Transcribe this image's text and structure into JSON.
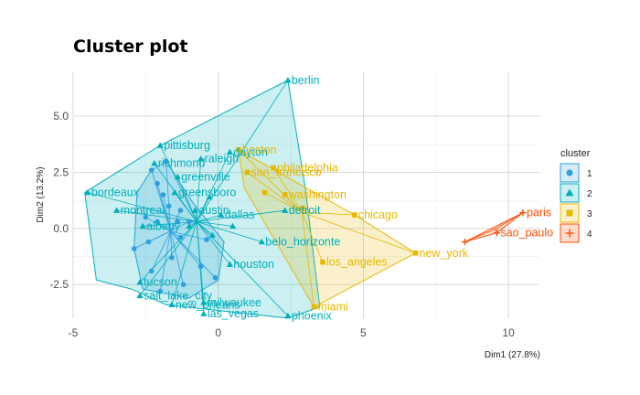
{
  "chart_data": {
    "type": "scatter",
    "title": "Cluster plot",
    "xlabel": "Dim1 (27.8%)",
    "ylabel": "Dim2 (13.2%)",
    "xlim": [
      -5,
      11.1
    ],
    "ylim": [
      -4.0,
      7.0
    ],
    "xticks": [
      -5,
      0,
      5,
      10
    ],
    "yticks": [
      -2.5,
      0.0,
      2.5,
      5.0
    ],
    "xtick_labels": [
      "-5",
      "0",
      "5",
      "10"
    ],
    "ytick_labels": [
      "-2.5",
      "0.0",
      "2.5",
      "5.0"
    ],
    "grid": true,
    "legend": {
      "title": "cluster",
      "position": "right",
      "entries": [
        {
          "label": "1",
          "color": "#2E9FDF",
          "shape": "circle"
        },
        {
          "label": "2",
          "color": "#00AFBB",
          "shape": "triangle"
        },
        {
          "label": "3",
          "color": "#E7B800",
          "shape": "square"
        },
        {
          "label": "4",
          "color": "#FC4E07",
          "shape": "cross"
        }
      ]
    },
    "series": [
      {
        "name": "1",
        "color": "#2E9FDF",
        "shape": "circle",
        "hull": [
          [
            -2.3,
            2.6
          ],
          [
            -1.8,
            3.0
          ],
          [
            -0.9,
            1.2
          ],
          [
            0.2,
            -0.6
          ],
          [
            0.0,
            -2.3
          ],
          [
            -1.0,
            -3.1
          ],
          [
            -2.6,
            -2.7
          ],
          [
            -2.9,
            -0.9
          ],
          [
            -2.8,
            1.6
          ]
        ],
        "points": [
          {
            "x": -1.9,
            "y": 1.5
          },
          {
            "x": -1.7,
            "y": 1.0
          },
          {
            "x": -1.3,
            "y": 0.8
          },
          {
            "x": -1.0,
            "y": 0.3
          },
          {
            "x": -1.4,
            "y": 0.3
          },
          {
            "x": -2.1,
            "y": 0.3
          },
          {
            "x": -2.5,
            "y": 0.5
          },
          {
            "x": -2.4,
            "y": -0.6
          },
          {
            "x": -1.3,
            "y": -0.4
          },
          {
            "x": -0.4,
            "y": -0.5
          },
          {
            "x": -1.6,
            "y": -1.3
          },
          {
            "x": -2.3,
            "y": -1.9
          },
          {
            "x": -0.6,
            "y": -1.7
          },
          {
            "x": -1.2,
            "y": -2.5
          },
          {
            "x": -2.0,
            "y": -2.8
          },
          {
            "x": -0.1,
            "y": -2.2
          },
          {
            "x": -2.1,
            "y": 2.0
          },
          {
            "x": -2.3,
            "y": 2.6
          },
          {
            "x": -1.8,
            "y": 3.0
          },
          {
            "x": -2.9,
            "y": -0.9
          }
        ]
      },
      {
        "name": "2",
        "color": "#00AFBB",
        "shape": "triangle",
        "hull": [
          [
            2.4,
            6.6
          ],
          [
            3.0,
            1.8
          ],
          [
            3.5,
            -3.5
          ],
          [
            2.4,
            -4.0
          ],
          [
            -1.8,
            -3.4
          ],
          [
            -3.0,
            -2.7
          ],
          [
            -4.2,
            -2.3
          ],
          [
            -4.6,
            1.6
          ],
          [
            -2.0,
            3.7
          ]
        ],
        "points": [
          {
            "x": 2.4,
            "y": 6.6,
            "label": "berlin"
          },
          {
            "x": -2.0,
            "y": 3.7,
            "label": "pittisburg"
          },
          {
            "x": -2.2,
            "y": 2.9,
            "label": "richmond"
          },
          {
            "x": -0.6,
            "y": 3.1,
            "label": "raleigh"
          },
          {
            "x": 0.4,
            "y": 3.4,
            "label": "dayton"
          },
          {
            "x": -4.5,
            "y": 1.6,
            "label": "bordeaux"
          },
          {
            "x": -1.4,
            "y": 2.3,
            "label": "greenville"
          },
          {
            "x": -1.5,
            "y": 1.6,
            "label": "greensboro"
          },
          {
            "x": -3.5,
            "y": 0.8,
            "label": "montreal"
          },
          {
            "x": -0.8,
            "y": 0.8,
            "label": "austin"
          },
          {
            "x": 0.1,
            "y": 0.6,
            "label": "dallas"
          },
          {
            "x": 2.3,
            "y": 0.8,
            "label": "detroit"
          },
          {
            "x": -2.6,
            "y": 0.1,
            "label": "albany"
          },
          {
            "x": 1.5,
            "y": -0.6,
            "label": "belo_horizonte"
          },
          {
            "x": 0.4,
            "y": -1.6,
            "label": "houston"
          },
          {
            "x": -2.7,
            "y": -2.4,
            "label": "tucson"
          },
          {
            "x": -1.6,
            "y": -3.4,
            "label": "new_orleans"
          },
          {
            "x": -0.5,
            "y": -3.3,
            "label": "milwaukee"
          },
          {
            "x": -2.7,
            "y": -3.0,
            "label": "salt_lake_city"
          },
          {
            "x": -0.5,
            "y": -3.8,
            "label": "las_vegas"
          },
          {
            "x": 2.4,
            "y": -3.9,
            "label": "phoenix"
          },
          {
            "x": -0.3,
            "y": 1.4
          },
          {
            "x": -1.0,
            "y": 0.1
          },
          {
            "x": -0.2,
            "y": -0.3
          },
          {
            "x": 0.5,
            "y": 0.1
          }
        ]
      },
      {
        "name": "3",
        "color": "#E7B800",
        "shape": "square",
        "hull": [
          [
            0.7,
            3.5
          ],
          [
            4.7,
            0.6
          ],
          [
            6.8,
            -1.1
          ],
          [
            3.3,
            -3.5
          ],
          [
            0.9,
            1.8
          ]
        ],
        "points": [
          {
            "x": 0.7,
            "y": 3.5,
            "label": "boston"
          },
          {
            "x": 1.9,
            "y": 2.7,
            "label": "philadelphia"
          },
          {
            "x": 1.0,
            "y": 2.5,
            "label": "san_francisco"
          },
          {
            "x": 2.3,
            "y": 1.5,
            "label": "washington"
          },
          {
            "x": 4.7,
            "y": 0.6,
            "label": "chicago"
          },
          {
            "x": 6.8,
            "y": -1.1,
            "label": "new_york"
          },
          {
            "x": 3.3,
            "y": -3.5,
            "label": "miami"
          },
          {
            "x": 3.6,
            "y": -1.5,
            "label": "los_angeles"
          },
          {
            "x": 2.9,
            "y": 0.9
          },
          {
            "x": 1.6,
            "y": 1.6
          }
        ]
      },
      {
        "name": "4",
        "color": "#FC4E07",
        "shape": "cross",
        "hull": [
          [
            10.5,
            0.7
          ],
          [
            8.5,
            -0.6
          ],
          [
            9.6,
            -0.2
          ]
        ],
        "points": [
          {
            "x": 10.5,
            "y": 0.7,
            "label": "paris"
          },
          {
            "x": 9.6,
            "y": -0.2,
            "label": "sao_paulo"
          },
          {
            "x": 8.5,
            "y": -0.6
          }
        ]
      }
    ],
    "label_colors": {
      "1": "#2E9FDF",
      "2": "#00AFBB",
      "3": "#E7B800",
      "4": "#FC4E07"
    }
  }
}
